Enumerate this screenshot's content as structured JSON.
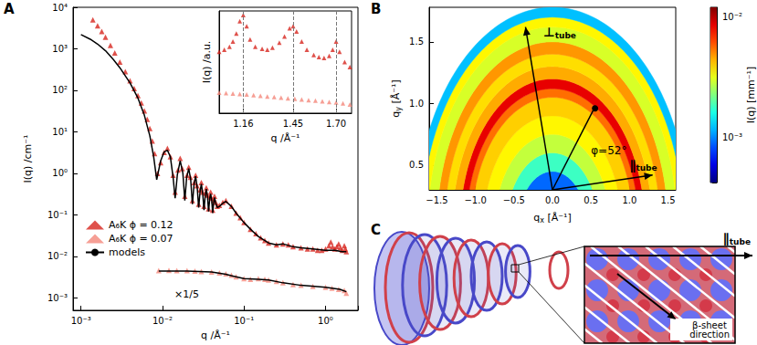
{
  "chart_data": [
    {
      "panel": "A",
      "type": "scatter",
      "xlabel": "q /Å⁻¹",
      "ylabel": "I(q) /cm⁻¹",
      "log": true,
      "grid": false,
      "legend": "lower left",
      "xlim": [
        0.0008,
        2.5
      ],
      "ylim": [
        0.0005,
        10000
      ],
      "xticks": [
        {
          "value": 0.001,
          "label": "10⁻³"
        },
        {
          "value": 0.01,
          "label": "10⁻²"
        },
        {
          "value": 0.1,
          "label": "10⁻¹"
        },
        {
          "value": 1,
          "label": "10⁰"
        }
      ],
      "yticks": [
        {
          "value": 0.001,
          "label": "10⁻³"
        },
        {
          "value": 0.01,
          "label": "10⁻²"
        },
        {
          "value": 0.1,
          "label": "10⁻¹"
        },
        {
          "value": 1,
          "label": "10⁰"
        },
        {
          "value": 10,
          "label": "10¹"
        },
        {
          "value": 100,
          "label": "10²"
        },
        {
          "value": 1000,
          "label": "10³"
        },
        {
          "value": 10000,
          "label": "10⁴"
        }
      ],
      "series": [
        {
          "name": "A₆K ϕ = 0.12",
          "type": "scatter",
          "marker": "triangle",
          "color": "#d7261e",
          "x": [
            0.0014,
            0.0016,
            0.0018,
            0.002,
            0.0023,
            0.0026,
            0.003,
            0.0035,
            0.004,
            0.0045,
            0.005,
            0.0055,
            0.006,
            0.0065,
            0.007,
            0.0075,
            0.008,
            0.0087,
            0.0095,
            0.0105,
            0.0115,
            0.0125,
            0.0135,
            0.0143,
            0.0155,
            0.0165,
            0.0175,
            0.0188,
            0.02,
            0.021,
            0.022,
            0.0233,
            0.0245,
            0.0255,
            0.0265,
            0.0278,
            0.029,
            0.03,
            0.031,
            0.0323,
            0.0335,
            0.0345,
            0.0355,
            0.0368,
            0.038,
            0.039,
            0.04,
            0.0413,
            0.0425,
            0.0435,
            0.045,
            0.047,
            0.05,
            0.055,
            0.06,
            0.07,
            0.08,
            0.09,
            0.1,
            0.12,
            0.14,
            0.16,
            0.18,
            0.2,
            0.25,
            0.3,
            0.35,
            0.4,
            0.5,
            0.6,
            0.7,
            0.8,
            0.9,
            1.0,
            1.1,
            1.16,
            1.22,
            1.3,
            1.38,
            1.45,
            1.52,
            1.6,
            1.7,
            1.75,
            1.8
          ],
          "values": [
            5000,
            3600,
            2600,
            1900,
            1200,
            800,
            480,
            280,
            170,
            110,
            75,
            50,
            32,
            20,
            12,
            6,
            3,
            1.0,
            1.8,
            3.2,
            4,
            2.5,
            0.9,
            0.35,
            1.2,
            2.3,
            1.3,
            0.28,
            0.9,
            1.4,
            0.8,
            0.22,
            0.6,
            0.9,
            0.5,
            0.18,
            0.4,
            0.6,
            0.35,
            0.16,
            0.33,
            0.45,
            0.3,
            0.14,
            0.27,
            0.35,
            0.25,
            0.13,
            0.22,
            0.28,
            0.2,
            0.16,
            0.17,
            0.2,
            0.22,
            0.16,
            0.11,
            0.085,
            0.065,
            0.045,
            0.035,
            0.028,
            0.024,
            0.021,
            0.019,
            0.02,
            0.019,
            0.017,
            0.016,
            0.015,
            0.015,
            0.014,
            0.014,
            0.015,
            0.018,
            0.022,
            0.017,
            0.015,
            0.017,
            0.02,
            0.016,
            0.014,
            0.018,
            0.015,
            0.013
          ]
        },
        {
          "name": "A₆K ϕ = 0.07",
          "type": "scatter",
          "marker": "triangle",
          "color": "#f4877a",
          "x": [
            0.009,
            0.012,
            0.015,
            0.02,
            0.025,
            0.03,
            0.04,
            0.05,
            0.06,
            0.07,
            0.08,
            0.1,
            0.12,
            0.15,
            0.18,
            0.2,
            0.25,
            0.3,
            0.4,
            0.5,
            0.7,
            1.0,
            1.2,
            1.45,
            1.7,
            1.8
          ],
          "values": [
            0.0045,
            0.0046,
            0.0045,
            0.0045,
            0.0044,
            0.0043,
            0.0042,
            0.004,
            0.0038,
            0.0035,
            0.0032,
            0.0029,
            0.0028,
            0.0029,
            0.0028,
            0.0027,
            0.0025,
            0.0023,
            0.0021,
            0.002,
            0.0019,
            0.0018,
            0.0017,
            0.0016,
            0.0015,
            0.0013
          ]
        },
        {
          "name": "models",
          "type": "line",
          "line_style": "solid",
          "color": "#000000",
          "x": [
            0.001,
            0.0013,
            0.0016,
            0.002,
            0.0025,
            0.003,
            0.004,
            0.005,
            0.006,
            0.007,
            0.0078,
            0.0085,
            0.0095,
            0.0105,
            0.0115,
            0.0125,
            0.0135,
            0.0143,
            0.0152,
            0.0165,
            0.0178,
            0.0188,
            0.0198,
            0.021,
            0.0222,
            0.0233,
            0.0244,
            0.0255,
            0.0267,
            0.0278,
            0.029,
            0.03,
            0.0312,
            0.0323,
            0.0335,
            0.0345,
            0.0357,
            0.0368,
            0.038,
            0.039,
            0.0402,
            0.0413,
            0.0425,
            0.0435,
            0.045,
            0.047,
            0.05,
            0.055,
            0.06,
            0.07,
            0.08,
            0.1,
            0.12,
            0.15,
            0.2,
            0.25,
            0.3,
            0.4,
            0.5,
            0.7,
            1.0,
            1.3,
            1.6,
            1.8,
            0.009,
            0.009,
            0.02,
            0.04,
            0.06,
            0.08,
            0.1,
            0.15,
            0.2,
            0.3,
            0.5,
            1.0,
            1.5,
            1.8
          ],
          "values": [
            2200,
            1700,
            1300,
            900,
            550,
            350,
            150,
            65,
            25,
            8,
            2.5,
            0.7,
            2,
            3.3,
            3.6,
            2.5,
            0.8,
            0.25,
            0.9,
            2.0,
            1.0,
            0.22,
            0.8,
            1.3,
            0.7,
            0.18,
            0.55,
            0.85,
            0.45,
            0.15,
            0.38,
            0.55,
            0.32,
            0.13,
            0.3,
            0.42,
            0.27,
            0.12,
            0.25,
            0.32,
            0.22,
            0.11,
            0.2,
            0.26,
            0.19,
            0.15,
            0.16,
            0.19,
            0.21,
            0.16,
            0.11,
            0.065,
            0.045,
            0.03,
            0.021,
            0.019,
            0.02,
            0.017,
            0.016,
            0.015,
            0.014,
            0.014,
            0.013,
            0.013,
            null,
            0.0044,
            0.0044,
            0.0042,
            0.0037,
            0.0032,
            0.0029,
            0.0028,
            0.0027,
            0.0023,
            0.002,
            0.0018,
            0.0016,
            0.0014
          ]
        }
      ],
      "annotations": [
        {
          "text": "×1/5",
          "x": 0.014,
          "y": 0.0012
        }
      ]
    },
    {
      "type": "scatter",
      "xlabel": "q /Å⁻¹",
      "ylabel": "I(q) /a.u.",
      "tick_labels": "x",
      "xlim": [
        1.02,
        1.79
      ],
      "ylim": [
        0,
        10
      ],
      "xticks": [
        1.16,
        1.45,
        {
          "value": 1.7,
          "label": "1.70"
        }
      ],
      "yticks": [],
      "reference_lines": [
        1.16,
        1.45,
        1.7
      ],
      "series": [
        {
          "name": "A₆K ϕ = 0.12",
          "marker": "triangle",
          "color": "#d7261e",
          "x": [
            1.02,
            1.05,
            1.08,
            1.1,
            1.12,
            1.14,
            1.16,
            1.18,
            1.2,
            1.23,
            1.27,
            1.3,
            1.33,
            1.37,
            1.4,
            1.43,
            1.45,
            1.47,
            1.5,
            1.53,
            1.57,
            1.6,
            1.63,
            1.66,
            1.68,
            1.7,
            1.72,
            1.75,
            1.78
          ],
          "values": [
            6.0,
            6.2,
            6.5,
            7,
            7.8,
            9,
            9.6,
            8.5,
            7.2,
            6.5,
            6.3,
            6.2,
            6.4,
            6.9,
            7.5,
            8.3,
            8.5,
            8.0,
            7.0,
            6.2,
            5.7,
            5.5,
            5.4,
            5.6,
            6.2,
            7.0,
            6.0,
            5.0,
            4.5
          ]
        },
        {
          "name": "A₆K ϕ = 0.07",
          "marker": "triangle",
          "color": "#f4877a",
          "x": [
            1.02,
            1.06,
            1.1,
            1.14,
            1.18,
            1.22,
            1.26,
            1.3,
            1.34,
            1.38,
            1.42,
            1.46,
            1.5,
            1.54,
            1.58,
            1.62,
            1.66,
            1.7,
            1.74,
            1.78
          ],
          "values": [
            2.0,
            1.97,
            1.92,
            1.87,
            1.82,
            1.76,
            1.7,
            1.64,
            1.58,
            1.52,
            1.46,
            1.4,
            1.34,
            1.28,
            1.22,
            1.16,
            1.1,
            1.04,
            0.95,
            0.85
          ]
        }
      ]
    },
    {
      "panel": "B",
      "type": "heatmap",
      "xlabel": "qx [Å⁻¹]",
      "ylabel": "qy [Å⁻¹]",
      "xlim": [
        -1.6,
        1.6
      ],
      "ylim": [
        0.3,
        1.78
      ],
      "xticks": [
        {
          "value": -1.5,
          "label": "−1.5"
        },
        {
          "value": -1,
          "label": "−1.0"
        },
        {
          "value": -0.5,
          "label": "−0.5"
        },
        {
          "value": 0,
          "label": "0.0"
        },
        0.5,
        {
          "value": 1,
          "label": "1.0"
        },
        1.5
      ],
      "yticks": [
        0.5,
        {
          "value": 1,
          "label": "1.0"
        },
        1.5
      ],
      "rings": {
        "q_inner": [
          0.3,
          0.45,
          0.6,
          0.75,
          0.9,
          1.05,
          1.12,
          1.2,
          1.3,
          1.4,
          1.5,
          1.62,
          1.7
        ],
        "q_outer": [
          0.45,
          0.6,
          0.75,
          0.9,
          1.05,
          1.12,
          1.2,
          1.3,
          1.4,
          1.5,
          1.62,
          1.7,
          1.78
        ],
        "intensity": [
          0.0009,
          0.0018,
          0.0028,
          0.0035,
          0.004,
          0.0055,
          0.0085,
          0.0045,
          0.0038,
          0.0048,
          0.003,
          0.0035,
          0.0012
        ]
      },
      "colorbar": {
        "label": "I(q) [mm⁻¹]",
        "log": true,
        "range": [
          0.00042,
          0.012
        ],
        "ticks": [
          {
            "value": 0.001,
            "label": "10⁻³"
          },
          {
            "value": 0.01,
            "label": "10⁻²"
          }
        ]
      },
      "arrows": [
        {
          "from": [
            0,
            0.3
          ],
          "to": [
            -0.35,
            1.62
          ],
          "marker": "arrow"
        },
        {
          "from": [
            0,
            0.3
          ],
          "to": [
            1.3,
            0.42
          ],
          "marker": "arrow"
        },
        {
          "from": [
            0,
            0.3
          ],
          "to": [
            0.55,
            0.97
          ],
          "marker": "dot"
        }
      ],
      "annotations": [
        {
          "text": "⊥tube",
          "x": -0.12,
          "y": 1.58
        },
        {
          "text": "∥tube",
          "x": 1.0,
          "y": 0.5
        },
        {
          "text": "φ=52°",
          "x": 0.5,
          "y": 0.62
        }
      ]
    }
  ],
  "diagram": {
    "panel": "C",
    "labels": [
      "∥tube",
      "β-sheet direction"
    ]
  }
}
